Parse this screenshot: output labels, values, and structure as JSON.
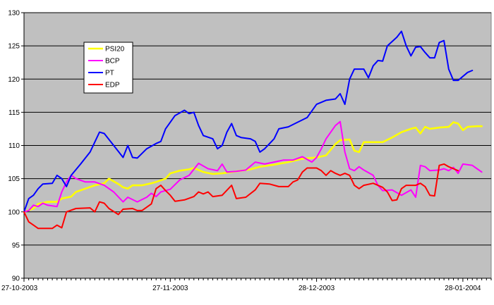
{
  "chart_data": {
    "type": "line",
    "title": "",
    "xlabel": "",
    "ylabel": "",
    "ylim": [
      90,
      130
    ],
    "yticks": [
      90,
      95,
      100,
      105,
      110,
      115,
      120,
      125,
      130
    ],
    "x_tick_labels": [
      "27-10-2003",
      "27-11-2003",
      "28-12-2003",
      "28-01-2004"
    ],
    "x_tick_days": [
      0,
      31,
      62,
      93
    ],
    "x_range_days": [
      0,
      99
    ],
    "grid": "horizontal",
    "plot_background": "#c0c0c0",
    "legend_position": "top-left",
    "series": [
      {
        "name": "PSI20",
        "color": "#ffff00",
        "points": [
          [
            0,
            100
          ],
          [
            2,
            100.5
          ],
          [
            3,
            101.2
          ],
          [
            5,
            101.5
          ],
          [
            7,
            101.5
          ],
          [
            8,
            102
          ],
          [
            10,
            102.3
          ],
          [
            11,
            103
          ],
          [
            13,
            103.5
          ],
          [
            15,
            104
          ],
          [
            17,
            104.3
          ],
          [
            18,
            105
          ],
          [
            20,
            104.2
          ],
          [
            21,
            103.7
          ],
          [
            22,
            103.5
          ],
          [
            23,
            104
          ],
          [
            25,
            104
          ],
          [
            27,
            104.3
          ],
          [
            28,
            104.5
          ],
          [
            30,
            105
          ],
          [
            31,
            105.8
          ],
          [
            33,
            106.2
          ],
          [
            35,
            106.4
          ],
          [
            36,
            106.6
          ],
          [
            38,
            106
          ],
          [
            40,
            105.7
          ],
          [
            42,
            105.8
          ],
          [
            45,
            106.1
          ],
          [
            48,
            106.4
          ],
          [
            50,
            106.8
          ],
          [
            53,
            107.1
          ],
          [
            56,
            107.5
          ],
          [
            59,
            108
          ],
          [
            62,
            108.2
          ],
          [
            64,
            108.5
          ],
          [
            66,
            110.2
          ],
          [
            67,
            110.8
          ],
          [
            69,
            110.9
          ],
          [
            70,
            109.2
          ],
          [
            71,
            109
          ],
          [
            72,
            110.5
          ],
          [
            74,
            110.5
          ],
          [
            76,
            110.5
          ],
          [
            78,
            111.2
          ],
          [
            80,
            112
          ],
          [
            82,
            112.5
          ],
          [
            83,
            112.7
          ],
          [
            84,
            111.8
          ],
          [
            85,
            112.8
          ],
          [
            86,
            112.5
          ],
          [
            88,
            112.7
          ],
          [
            90,
            112.8
          ],
          [
            91,
            113.5
          ],
          [
            92,
            113.3
          ],
          [
            93,
            112.3
          ],
          [
            94,
            112.8
          ],
          [
            96,
            112.9
          ],
          [
            97,
            112.9
          ]
        ]
      },
      {
        "name": "BCP",
        "color": "#ff00ff",
        "points": [
          [
            0,
            100
          ],
          [
            1,
            100.2
          ],
          [
            2,
            101
          ],
          [
            3,
            100.8
          ],
          [
            4,
            101.3
          ],
          [
            5,
            101
          ],
          [
            7,
            100.8
          ],
          [
            8,
            103
          ],
          [
            9,
            104.5
          ],
          [
            10,
            105.5
          ],
          [
            11,
            105
          ],
          [
            13,
            104.5
          ],
          [
            15,
            104.5
          ],
          [
            17,
            104
          ],
          [
            19,
            103
          ],
          [
            21,
            101.5
          ],
          [
            22,
            102.2
          ],
          [
            24,
            101.5
          ],
          [
            26,
            102.2
          ],
          [
            27,
            102.8
          ],
          [
            28,
            102.3
          ],
          [
            29,
            103
          ],
          [
            31,
            103.4
          ],
          [
            33,
            104.8
          ],
          [
            35,
            105.5
          ],
          [
            37,
            107.3
          ],
          [
            39,
            106.5
          ],
          [
            41,
            106.2
          ],
          [
            42,
            107.2
          ],
          [
            43,
            106
          ],
          [
            45,
            106.1
          ],
          [
            47,
            106.3
          ],
          [
            49,
            107.5
          ],
          [
            51,
            107.2
          ],
          [
            53,
            107.5
          ],
          [
            55,
            107.8
          ],
          [
            57,
            107.8
          ],
          [
            59,
            108.3
          ],
          [
            61,
            107.5
          ],
          [
            62,
            108.2
          ],
          [
            63,
            109.5
          ],
          [
            64,
            111
          ],
          [
            66,
            113
          ],
          [
            67,
            113.6
          ],
          [
            68,
            109
          ],
          [
            69,
            106.5
          ],
          [
            70,
            106.2
          ],
          [
            71,
            106.8
          ],
          [
            72,
            106.3
          ],
          [
            74,
            105.5
          ],
          [
            75,
            104
          ],
          [
            76,
            103.2
          ],
          [
            78,
            103.3
          ],
          [
            80,
            102.5
          ],
          [
            82,
            103.3
          ],
          [
            83,
            102.2
          ],
          [
            84,
            107
          ],
          [
            85,
            106.8
          ],
          [
            86,
            106.2
          ],
          [
            88,
            106.3
          ],
          [
            89,
            106.5
          ],
          [
            90,
            106.2
          ],
          [
            91,
            106.7
          ],
          [
            92,
            105.8
          ],
          [
            93,
            107.2
          ],
          [
            95,
            107
          ],
          [
            96,
            106.5
          ],
          [
            97,
            106
          ]
        ]
      },
      {
        "name": "PT",
        "color": "#0000ff",
        "points": [
          [
            0,
            100
          ],
          [
            1,
            102
          ],
          [
            2,
            102.5
          ],
          [
            3,
            103.5
          ],
          [
            4,
            104.2
          ],
          [
            6,
            104.3
          ],
          [
            7,
            105.5
          ],
          [
            8,
            105
          ],
          [
            9,
            103.8
          ],
          [
            10,
            105.5
          ],
          [
            12,
            107.2
          ],
          [
            14,
            109
          ],
          [
            16,
            112
          ],
          [
            17,
            111.8
          ],
          [
            19,
            110
          ],
          [
            21,
            108.2
          ],
          [
            22,
            110
          ],
          [
            23,
            108.2
          ],
          [
            24,
            108.1
          ],
          [
            26,
            109.5
          ],
          [
            28,
            110.3
          ],
          [
            29,
            110.6
          ],
          [
            30,
            112.5
          ],
          [
            32,
            114.5
          ],
          [
            34,
            115.3
          ],
          [
            35,
            114.8
          ],
          [
            36,
            115
          ],
          [
            37,
            113
          ],
          [
            38,
            111.5
          ],
          [
            40,
            111
          ],
          [
            41,
            109.5
          ],
          [
            42,
            110
          ],
          [
            43,
            112
          ],
          [
            44,
            113.3
          ],
          [
            45,
            111.5
          ],
          [
            46,
            111.2
          ],
          [
            48,
            111
          ],
          [
            49,
            110.6
          ],
          [
            50,
            109
          ],
          [
            51,
            109.5
          ],
          [
            53,
            111
          ],
          [
            54,
            112.5
          ],
          [
            56,
            112.8
          ],
          [
            58,
            113.5
          ],
          [
            60,
            114.2
          ],
          [
            62,
            116.2
          ],
          [
            64,
            116.8
          ],
          [
            66,
            117
          ],
          [
            67,
            117.8
          ],
          [
            68,
            116.2
          ],
          [
            69,
            120
          ],
          [
            70,
            121.5
          ],
          [
            72,
            121.5
          ],
          [
            73,
            120.2
          ],
          [
            74,
            122
          ],
          [
            75,
            122.8
          ],
          [
            76,
            122.7
          ],
          [
            77,
            125
          ],
          [
            79,
            126.3
          ],
          [
            80,
            127.2
          ],
          [
            81,
            125
          ],
          [
            82,
            123.5
          ],
          [
            83,
            124.8
          ],
          [
            84,
            124.9
          ],
          [
            85,
            124
          ],
          [
            86,
            123.2
          ],
          [
            87,
            123.2
          ],
          [
            88,
            125.5
          ],
          [
            89,
            125.8
          ],
          [
            90,
            121.5
          ],
          [
            91,
            119.8
          ],
          [
            92,
            119.8
          ],
          [
            94,
            121
          ],
          [
            95,
            121.3
          ]
        ]
      },
      {
        "name": "EDP",
        "color": "#ff0000",
        "points": [
          [
            0,
            100
          ],
          [
            1,
            98.5
          ],
          [
            2,
            98
          ],
          [
            3,
            97.5
          ],
          [
            5,
            97.5
          ],
          [
            6,
            97.5
          ],
          [
            7,
            98
          ],
          [
            8,
            97.6
          ],
          [
            9,
            100
          ],
          [
            11,
            100.5
          ],
          [
            14,
            100.6
          ],
          [
            15,
            100
          ],
          [
            16,
            101.5
          ],
          [
            17,
            101.3
          ],
          [
            18,
            100.5
          ],
          [
            20,
            99.6
          ],
          [
            21,
            100.4
          ],
          [
            23,
            100.5
          ],
          [
            24,
            100.2
          ],
          [
            25,
            100.2
          ],
          [
            27,
            101.2
          ],
          [
            28,
            103.5
          ],
          [
            29,
            104
          ],
          [
            30,
            103.2
          ],
          [
            31,
            102.5
          ],
          [
            32,
            101.6
          ],
          [
            34,
            101.8
          ],
          [
            36,
            102.3
          ],
          [
            37,
            103
          ],
          [
            38,
            102.7
          ],
          [
            39,
            103
          ],
          [
            40,
            102.3
          ],
          [
            42,
            102.5
          ],
          [
            44,
            104
          ],
          [
            45,
            102
          ],
          [
            47,
            102.2
          ],
          [
            49,
            103.3
          ],
          [
            50,
            104.3
          ],
          [
            52,
            104.2
          ],
          [
            54,
            103.8
          ],
          [
            56,
            103.8
          ],
          [
            57,
            104.5
          ],
          [
            58,
            104.8
          ],
          [
            59,
            106
          ],
          [
            60,
            106.6
          ],
          [
            62,
            106.6
          ],
          [
            63,
            106.2
          ],
          [
            64,
            105.5
          ],
          [
            65,
            106.2
          ],
          [
            66,
            105.8
          ],
          [
            67,
            105.5
          ],
          [
            68,
            105.8
          ],
          [
            69,
            105.5
          ],
          [
            70,
            104
          ],
          [
            71,
            103.5
          ],
          [
            72,
            104
          ],
          [
            74,
            104.3
          ],
          [
            75,
            104
          ],
          [
            76,
            103.7
          ],
          [
            77,
            103
          ],
          [
            78,
            101.7
          ],
          [
            79,
            101.8
          ],
          [
            80,
            103.5
          ],
          [
            81,
            104
          ],
          [
            83,
            104
          ],
          [
            84,
            104.3
          ],
          [
            85,
            103.8
          ],
          [
            86,
            102.5
          ],
          [
            87,
            102.4
          ],
          [
            88,
            107
          ],
          [
            89,
            107.2
          ],
          [
            90,
            106.8
          ],
          [
            91,
            106.5
          ],
          [
            92,
            106.2
          ]
        ]
      }
    ]
  }
}
